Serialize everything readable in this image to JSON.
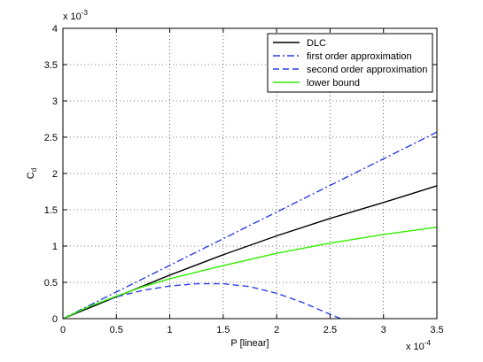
{
  "chart_data": {
    "type": "line",
    "xlabel": "P [linear]",
    "ylabel_main": "C",
    "ylabel_sub": "d",
    "x_multiplier": "x 10",
    "x_multiplier_exp": "-4",
    "y_multiplier": "x 10",
    "y_multiplier_exp": "-3",
    "xlim": [
      0,
      3.5
    ],
    "ylim": [
      0,
      4
    ],
    "x_ticks": [
      0,
      0.5,
      1,
      1.5,
      2,
      2.5,
      3,
      3.5
    ],
    "x_tick_labels": [
      "0",
      "0.5",
      "1",
      "1.5",
      "2",
      "2.5",
      "3",
      "3.5"
    ],
    "y_ticks": [
      0,
      0.5,
      1,
      1.5,
      2,
      2.5,
      3,
      3.5,
      4
    ],
    "y_tick_labels": [
      "0",
      "0.5",
      "1",
      "1.5",
      "2",
      "2.5",
      "3",
      "3.5",
      "4"
    ],
    "grid": true,
    "legend_position": "top-right",
    "series": [
      {
        "name": "DLC",
        "color": "#000000",
        "dash": "solid",
        "x": [
          0,
          0.5,
          1,
          1.5,
          2,
          2.5,
          3,
          3.5
        ],
        "y": [
          0,
          0.3,
          0.6,
          0.88,
          1.14,
          1.38,
          1.6,
          1.83
        ]
      },
      {
        "name": "first order approximation",
        "color": "#2b3fe6",
        "dash": "dashdot",
        "x": [
          0,
          3.5
        ],
        "y": [
          0,
          2.57
        ]
      },
      {
        "name": "second order approximation",
        "color": "#2b3fe6",
        "dash": "dashed",
        "x": [
          0,
          0.25,
          0.5,
          0.75,
          1,
          1.25,
          1.5,
          1.75,
          2,
          2.25,
          2.5,
          2.6
        ],
        "y": [
          0,
          0.17,
          0.3,
          0.39,
          0.45,
          0.48,
          0.48,
          0.44,
          0.35,
          0.22,
          0.06,
          0
        ]
      },
      {
        "name": "lower bound",
        "color": "#33ee00",
        "dash": "solid",
        "x": [
          0,
          0.25,
          0.5,
          0.75,
          1,
          1.5,
          2,
          2.5,
          3,
          3.5
        ],
        "y": [
          0,
          0.17,
          0.31,
          0.44,
          0.55,
          0.73,
          0.9,
          1.04,
          1.16,
          1.26
        ]
      }
    ]
  }
}
